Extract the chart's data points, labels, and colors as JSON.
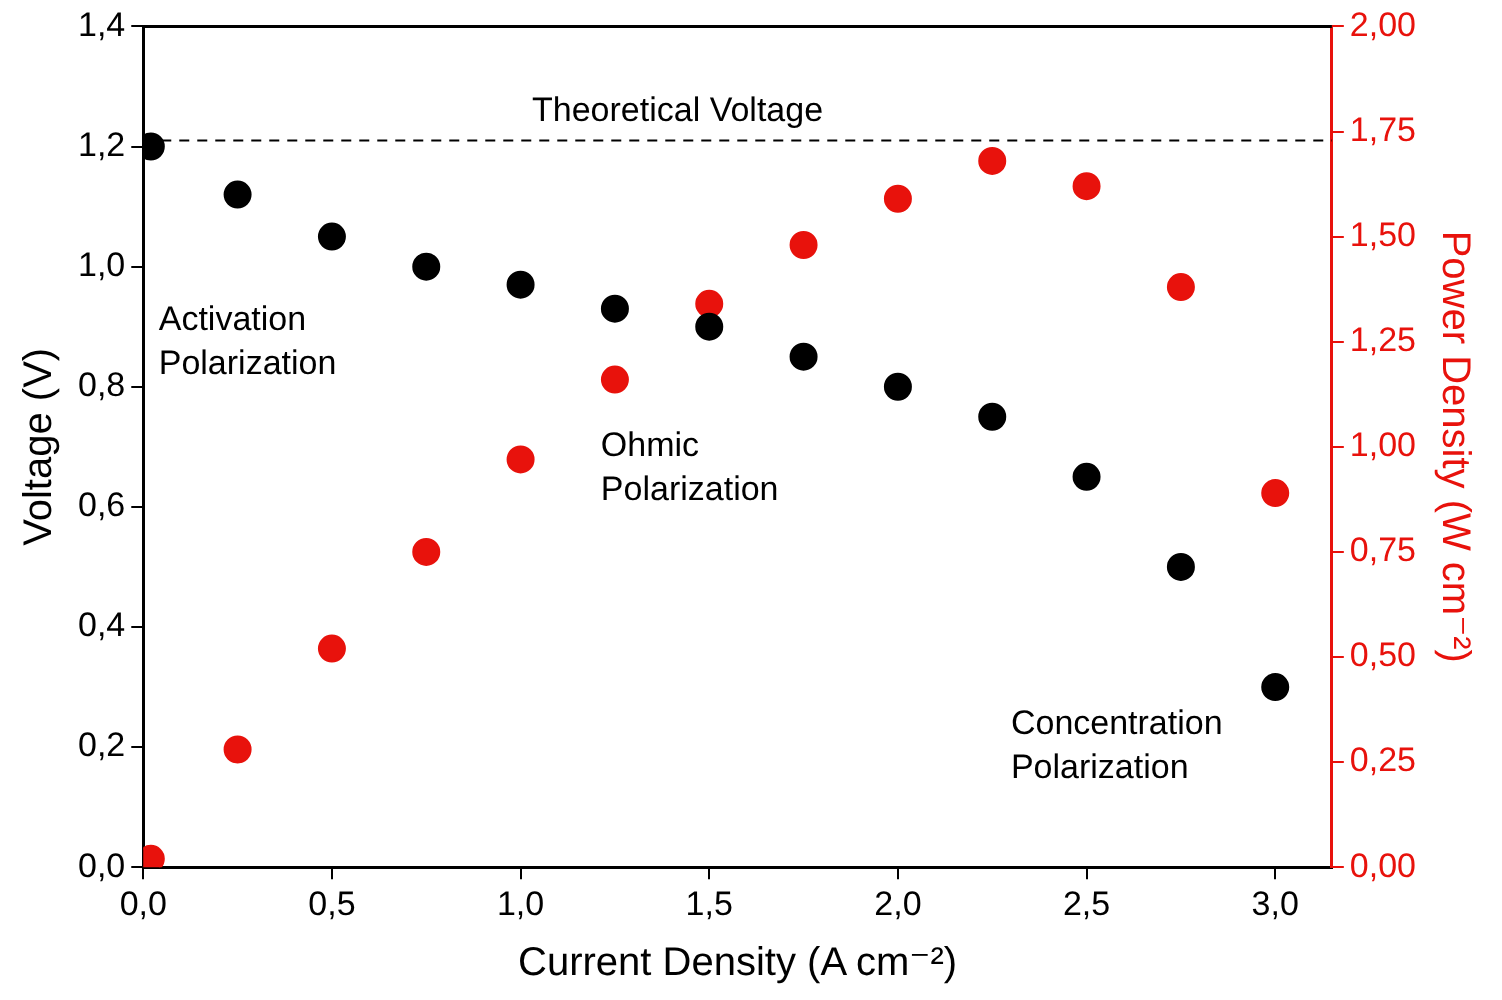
{
  "chart_data": {
    "type": "scatter",
    "xlabel": "Current Density (A cm⁻²)",
    "ylabel": "Voltage (V)",
    "y2label": "Power Density (W cm⁻²)",
    "x": [
      0.02,
      0.25,
      0.5,
      0.75,
      1.0,
      1.25,
      1.5,
      1.75,
      2.0,
      2.25,
      2.5,
      2.75,
      3.0
    ],
    "series": [
      {
        "color": "#000000",
        "values": [
          1.2,
          1.12,
          1.05,
          1.0,
          0.97,
          0.93,
          0.9,
          0.85,
          0.8,
          0.75,
          0.65,
          0.5,
          0.3
        ]
      },
      {
        "color": "#e8120c",
        "axis": "y2",
        "values": [
          0.02,
          0.28,
          0.52,
          0.75,
          0.97,
          1.16,
          1.34,
          1.48,
          1.59,
          1.68,
          1.62,
          1.38,
          0.89
        ]
      }
    ],
    "xlim": [
      0,
      3.15
    ],
    "xticks": [
      {
        "value": 0,
        "label": "0,0"
      },
      {
        "value": 0.5,
        "label": "0,5"
      },
      {
        "value": 1,
        "label": "1,0"
      },
      {
        "value": 1.5,
        "label": "1,5"
      },
      {
        "value": 2,
        "label": "2,0"
      },
      {
        "value": 2.5,
        "label": "2,5"
      },
      {
        "value": 3,
        "label": "3,0"
      }
    ],
    "ylim": [
      0,
      1.4
    ],
    "yticks": [
      {
        "value": 0,
        "label": "0,0"
      },
      {
        "value": 0.2,
        "label": "0,2"
      },
      {
        "value": 0.4,
        "label": "0,4"
      },
      {
        "value": 0.6,
        "label": "0,6"
      },
      {
        "value": 0.8,
        "label": "0,8"
      },
      {
        "value": 1,
        "label": "1,0"
      },
      {
        "value": 1.2,
        "label": "1,2"
      },
      {
        "value": 1.4,
        "label": "1,4"
      }
    ],
    "y2lim": [
      0,
      2
    ],
    "y2ticks": [
      {
        "value": 0,
        "label": "0,00"
      },
      {
        "value": 0.25,
        "label": "0,25"
      },
      {
        "value": 0.5,
        "label": "0,50"
      },
      {
        "value": 0.75,
        "label": "0,75"
      },
      {
        "value": 1,
        "label": "1,00"
      },
      {
        "value": 1.25,
        "label": "1,25"
      },
      {
        "value": 1.5,
        "label": "1,50"
      },
      {
        "value": 1.75,
        "label": "1,75"
      },
      {
        "value": 2,
        "label": "2,00"
      }
    ],
    "ref_lines": [
      {
        "axis": "y",
        "value": 1.21,
        "label": "Theoretical Voltage",
        "color": "#000000",
        "line_style": "dashed"
      }
    ],
    "annotations": [
      "Activation Polarization",
      "Ohmic Polarization",
      "Concentration Polarization"
    ],
    "marker": "circle",
    "legend": false,
    "grid": false
  }
}
